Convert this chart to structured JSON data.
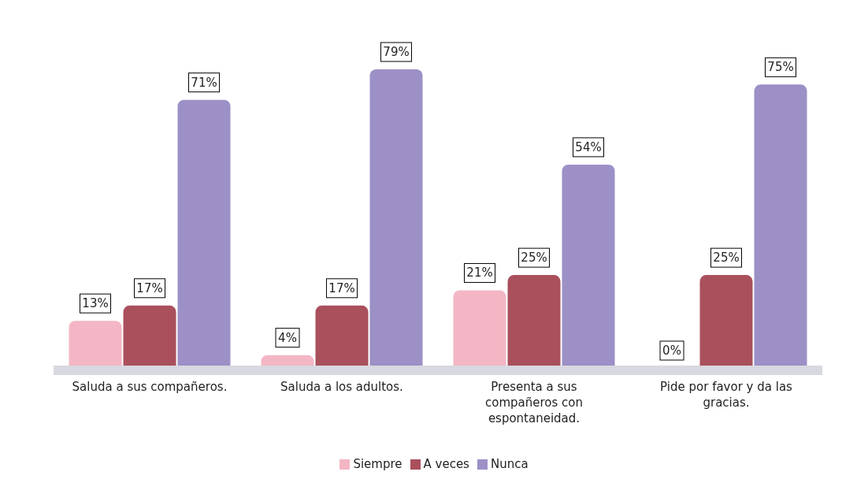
{
  "chart_data": {
    "type": "bar",
    "categories": [
      "Saluda a sus compañeros.",
      "Saluda a los adultos.",
      "Presenta a sus compañeros con espontaneidad.",
      "Pide por favor y da las gracias."
    ],
    "series": [
      {
        "name": "Siempre",
        "color": "#f4b6c4",
        "values": [
          13,
          4,
          21,
          0
        ],
        "value_labels": [
          "13%",
          "4%",
          "21%",
          "0%"
        ]
      },
      {
        "name": "A veces",
        "color": "#a9505c",
        "values": [
          17,
          17,
          25,
          25
        ],
        "value_labels": [
          "17%",
          "17%",
          "25%",
          "25%"
        ]
      },
      {
        "name": "Nunca",
        "color": "#9c90c6",
        "values": [
          71,
          79,
          54,
          75
        ],
        "value_labels": [
          "71%",
          "79%",
          "54%",
          "75%"
        ]
      }
    ],
    "legend": "bottom",
    "grid": false
  }
}
